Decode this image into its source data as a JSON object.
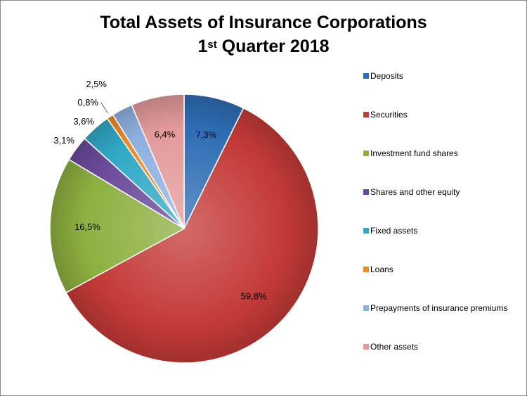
{
  "title_line1": "Total Assets of Insurance Corporations",
  "title_line2_num": "1",
  "title_line2_sup": "st",
  "title_line2_rest": " Quarter 2018",
  "chart_data": {
    "type": "pie",
    "title": "Total Assets of Insurance Corporations 1st Quarter 2018",
    "legend_position": "right",
    "start_angle_deg": 0,
    "direction": "clockwise",
    "slices": [
      {
        "label": "Deposits",
        "value": 7.3,
        "display": "7,3%",
        "color": "#2e6db4"
      },
      {
        "label": "Securities",
        "value": 59.8,
        "display": "59,8%",
        "color": "#c33a37"
      },
      {
        "label": "Investment fund shares",
        "value": 16.5,
        "display": "16,5%",
        "color": "#8cb040"
      },
      {
        "label": "Shares and other equity",
        "value": 3.1,
        "display": "3,1%",
        "color": "#6a4a9a"
      },
      {
        "label": "Fixed assets",
        "value": 3.6,
        "display": "3,6%",
        "color": "#31a9c6"
      },
      {
        "label": "Loans",
        "value": 0.8,
        "display": "0,8%",
        "color": "#f08a24"
      },
      {
        "label": "Prepayments of insurance premiums",
        "value": 2.5,
        "display": "2,5%",
        "color": "#8fb1e0"
      },
      {
        "label": "Other assets",
        "value": 6.4,
        "display": "6,4%",
        "color": "#e39a9a"
      }
    ]
  }
}
